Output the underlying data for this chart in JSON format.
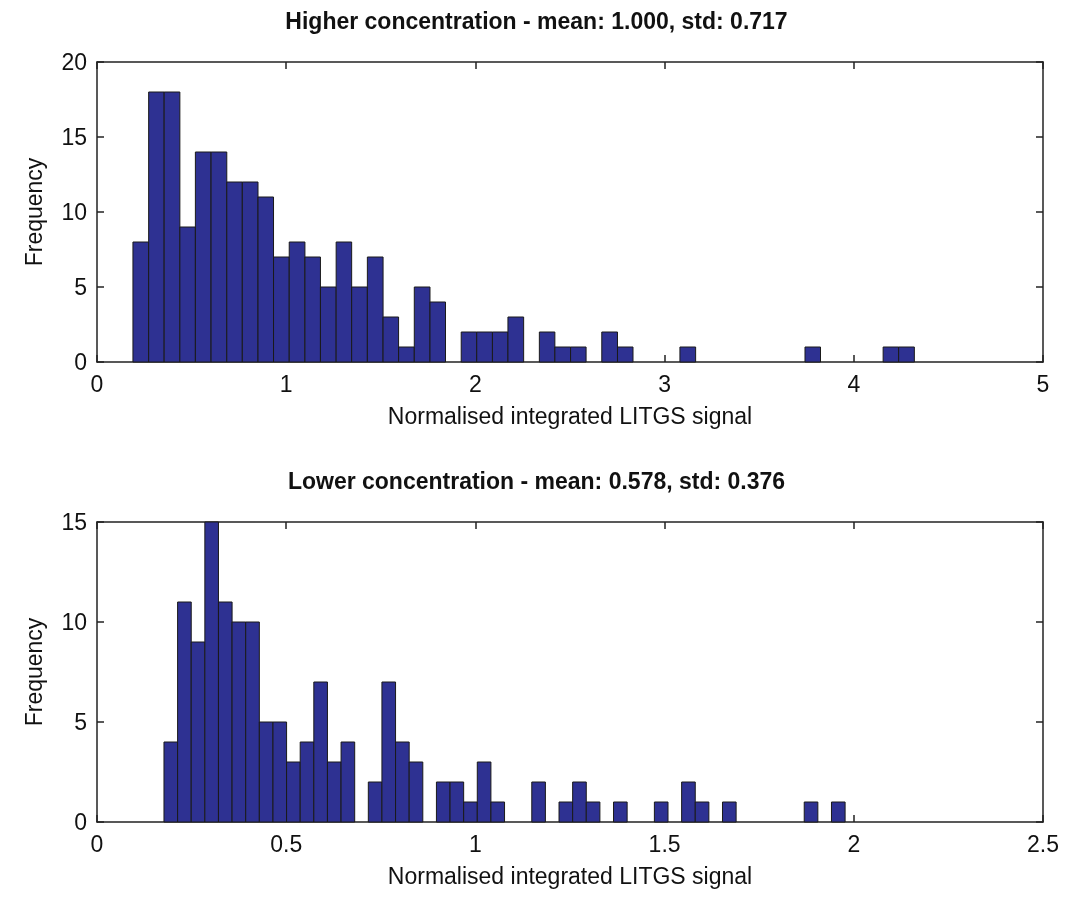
{
  "chart_data": [
    {
      "type": "histogram",
      "title": "Higher concentration - mean: 1.000, std: 0.717",
      "xlabel": "Normalised integrated LITGS signal",
      "ylabel": "Frequency",
      "color": "#2e3192",
      "bins": [
        0.19,
        0.273,
        0.355,
        0.438,
        0.52,
        0.603,
        0.686,
        0.768,
        0.851,
        0.933,
        1.016,
        1.099,
        1.181,
        1.264,
        1.346,
        1.429,
        1.512,
        1.594,
        1.677,
        1.76,
        1.842,
        1.925,
        2.007,
        2.09,
        2.172,
        2.255,
        2.338,
        2.42,
        2.503,
        2.585,
        2.668,
        2.751,
        2.833,
        2.916,
        2.998,
        3.081,
        3.164,
        3.246,
        3.329,
        3.411,
        3.494,
        3.577,
        3.659,
        3.742,
        3.824,
        3.907,
        3.99,
        4.072,
        4.155,
        4.237,
        4.32
      ],
      "values": [
        8,
        18,
        18,
        9,
        14,
        14,
        12,
        12,
        11,
        7,
        8,
        7,
        5,
        8,
        5,
        7,
        3,
        1,
        5,
        4,
        0,
        2,
        2,
        2,
        3,
        0,
        2,
        1,
        1,
        0,
        2,
        1,
        0,
        0,
        0,
        1,
        0,
        0,
        0,
        0,
        0,
        0,
        0,
        1,
        0,
        0,
        0,
        0,
        1,
        1
      ],
      "xlim": [
        0,
        5
      ],
      "xticks": [
        0,
        1,
        2,
        3,
        4,
        5
      ],
      "ylim": [
        0,
        20
      ],
      "yticks": [
        0,
        5,
        10,
        15,
        20
      ],
      "grid": false
    },
    {
      "type": "histogram",
      "title": "Lower concentration - mean: 0.578, std: 0.376",
      "xlabel": "Normalised integrated LITGS signal",
      "ylabel": "Frequency",
      "color": "#2e3192",
      "bins": [
        0.177,
        0.213,
        0.249,
        0.285,
        0.321,
        0.357,
        0.393,
        0.429,
        0.465,
        0.501,
        0.537,
        0.573,
        0.609,
        0.645,
        0.681,
        0.717,
        0.753,
        0.789,
        0.825,
        0.861,
        0.897,
        0.933,
        0.969,
        1.005,
        1.041,
        1.077,
        1.113,
        1.149,
        1.185,
        1.221,
        1.257,
        1.293,
        1.329,
        1.365,
        1.401,
        1.437,
        1.473,
        1.509,
        1.545,
        1.581,
        1.617,
        1.653,
        1.689,
        1.725,
        1.761,
        1.797,
        1.833,
        1.869,
        1.905,
        1.941,
        1.977
      ],
      "values": [
        4,
        11,
        9,
        15,
        11,
        10,
        10,
        5,
        5,
        3,
        4,
        7,
        3,
        4,
        0,
        2,
        7,
        4,
        3,
        0,
        2,
        2,
        1,
        3,
        1,
        0,
        0,
        2,
        0,
        1,
        2,
        1,
        0,
        1,
        0,
        0,
        1,
        0,
        2,
        1,
        0,
        1,
        0,
        0,
        0,
        0,
        0,
        1,
        0,
        1
      ],
      "xlim": [
        0,
        2.5
      ],
      "xticks": [
        0,
        0.5,
        1,
        1.5,
        2,
        2.5
      ],
      "ylim": [
        0,
        15
      ],
      "yticks": [
        0,
        5,
        10,
        15
      ],
      "grid": false
    }
  ]
}
